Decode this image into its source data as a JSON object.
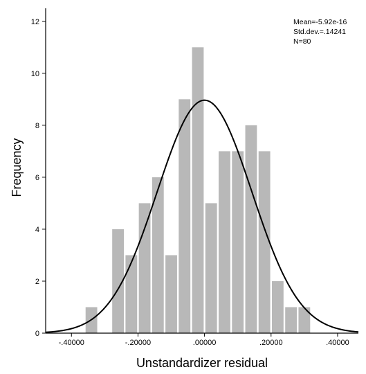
{
  "chart_data": {
    "type": "bar",
    "subtype": "histogram",
    "xlabel": "Unstandardizer residual",
    "ylabel": "Frequency",
    "ylim": [
      0,
      12.5
    ],
    "xlim": [
      -0.4775,
      0.4625
    ],
    "x_ticks": [
      -0.4,
      -0.2,
      0.0,
      0.2,
      0.4
    ],
    "x_tick_labels": [
      "-.40000",
      "-.20000",
      ".00000",
      ".20000",
      ".40000"
    ],
    "y_ticks": [
      0,
      2,
      4,
      6,
      8,
      10,
      12
    ],
    "y_tick_labels": [
      "0",
      "2",
      "4",
      "6",
      "8",
      "10",
      "12"
    ],
    "bin_width": 0.04,
    "bin_centers": [
      -0.34,
      -0.3,
      -0.26,
      -0.22,
      -0.18,
      -0.14,
      -0.1,
      -0.06,
      -0.02,
      0.02,
      0.06,
      0.1,
      0.14,
      0.18,
      0.22,
      0.26,
      0.3,
      0.34,
      0.38
    ],
    "values": [
      1,
      0,
      4,
      3,
      5,
      6,
      3,
      9,
      11,
      5,
      7,
      7,
      8,
      7,
      2,
      1,
      1,
      0,
      0
    ],
    "bar_color": "#b8b8b8",
    "normal_curve": {
      "mean": -5.92e-16,
      "std": 0.14241,
      "n": 80,
      "color": "#000000"
    },
    "stats_lines": [
      "Mean=-5.92e-16",
      "Std.dev.=.14241",
      "N=80"
    ],
    "grid": false,
    "legend": "none"
  }
}
